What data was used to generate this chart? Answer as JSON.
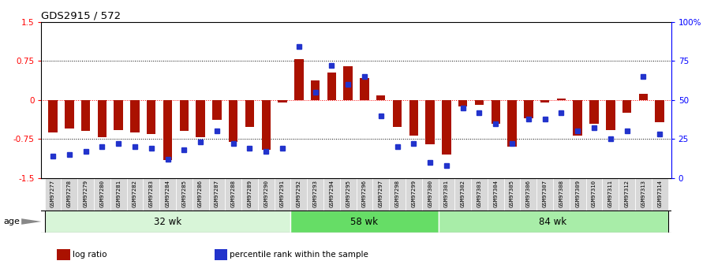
{
  "title": "GDS2915 / 572",
  "samples": [
    "GSM97277",
    "GSM97278",
    "GSM97279",
    "GSM97280",
    "GSM97281",
    "GSM97282",
    "GSM97283",
    "GSM97284",
    "GSM97285",
    "GSM97286",
    "GSM97287",
    "GSM97288",
    "GSM97289",
    "GSM97290",
    "GSM97291",
    "GSM97292",
    "GSM97293",
    "GSM97294",
    "GSM97295",
    "GSM97296",
    "GSM97297",
    "GSM97298",
    "GSM97299",
    "GSM97300",
    "GSM97301",
    "GSM97302",
    "GSM97303",
    "GSM97304",
    "GSM97305",
    "GSM97306",
    "GSM97307",
    "GSM97308",
    "GSM97309",
    "GSM97310",
    "GSM97311",
    "GSM97312",
    "GSM97313",
    "GSM97314"
  ],
  "log_ratio": [
    -0.62,
    -0.55,
    -0.6,
    -0.72,
    -0.58,
    -0.62,
    -0.65,
    -1.15,
    -0.6,
    -0.72,
    -0.38,
    -0.8,
    -0.52,
    -0.95,
    -0.05,
    0.78,
    0.38,
    0.52,
    0.65,
    0.42,
    0.08,
    -0.52,
    -0.68,
    -0.85,
    -1.05,
    -0.12,
    -0.1,
    -0.45,
    -0.9,
    -0.35,
    -0.05,
    0.02,
    -0.68,
    -0.45,
    -0.58,
    -0.25,
    0.12,
    -0.42
  ],
  "percentile": [
    14,
    15,
    17,
    20,
    22,
    20,
    19,
    12,
    18,
    23,
    30,
    22,
    19,
    17,
    19,
    84,
    55,
    72,
    60,
    65,
    40,
    20,
    22,
    10,
    8,
    45,
    42,
    35,
    22,
    38,
    38,
    42,
    30,
    32,
    25,
    30,
    65,
    28
  ],
  "groups": [
    {
      "label": "32 wk",
      "start": 0,
      "end": 15,
      "color": "#d8f5d8"
    },
    {
      "label": "58 wk",
      "start": 15,
      "end": 24,
      "color": "#66dd66"
    },
    {
      "label": "84 wk",
      "start": 24,
      "end": 38,
      "color": "#a8eda8"
    }
  ],
  "bar_color": "#aa1100",
  "dot_color": "#2233cc",
  "ylim_left": [
    -1.5,
    1.5
  ],
  "ylim_right": [
    0,
    100
  ],
  "left_yticks": [
    -1.5,
    -0.75,
    0,
    0.75,
    1.5
  ],
  "left_yticklabels": [
    "-1.5",
    "-0.75",
    "0",
    "0.75",
    "1.5"
  ],
  "right_yticks": [
    0,
    25,
    50,
    75,
    100
  ],
  "right_yticklabels": [
    "0",
    "25",
    "50",
    "75",
    "100%"
  ],
  "hlines_black": [
    0.75,
    -0.75
  ],
  "hline_red": 0.0,
  "age_label": "age",
  "legend_items": [
    {
      "color": "#aa1100",
      "label": "log ratio"
    },
    {
      "color": "#2233cc",
      "label": "percentile rank within the sample"
    }
  ]
}
